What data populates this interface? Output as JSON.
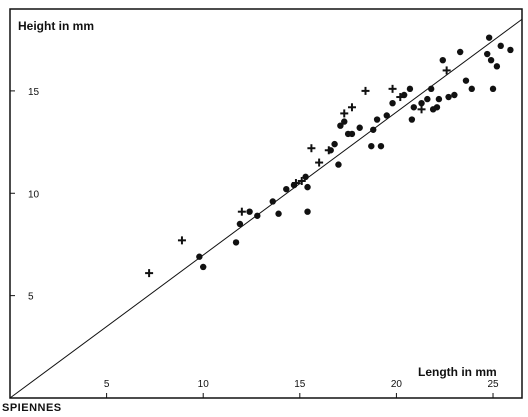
{
  "chart_data": {
    "type": "scatter",
    "title": "",
    "xlabel": "Length in mm",
    "ylabel": "Height in mm",
    "xlim": [
      0,
      26.5
    ],
    "ylim": [
      0,
      19
    ],
    "x_ticks": [
      5,
      10,
      15,
      20,
      25
    ],
    "y_ticks": [
      5,
      10,
      15
    ],
    "site_label": "SPIENNES",
    "grid": false,
    "legend": "none",
    "series": [
      {
        "marker": "dot",
        "points": [
          [
            9.8,
            6.9
          ],
          [
            10.0,
            6.4
          ],
          [
            11.7,
            7.6
          ],
          [
            11.9,
            8.5
          ],
          [
            12.4,
            9.1
          ],
          [
            12.8,
            8.9
          ],
          [
            13.6,
            9.6
          ],
          [
            13.9,
            9.0
          ],
          [
            14.3,
            10.2
          ],
          [
            14.7,
            10.4
          ],
          [
            15.3,
            10.8
          ],
          [
            15.4,
            9.1
          ],
          [
            15.4,
            10.3
          ],
          [
            16.6,
            12.1
          ],
          [
            16.8,
            12.4
          ],
          [
            17.0,
            11.4
          ],
          [
            17.1,
            13.3
          ],
          [
            17.3,
            13.5
          ],
          [
            17.5,
            12.9
          ],
          [
            17.7,
            12.9
          ],
          [
            18.1,
            13.2
          ],
          [
            18.7,
            12.3
          ],
          [
            18.8,
            13.1
          ],
          [
            19.0,
            13.6
          ],
          [
            19.2,
            12.3
          ],
          [
            19.5,
            13.8
          ],
          [
            19.8,
            14.4
          ],
          [
            20.4,
            14.8
          ],
          [
            20.7,
            15.1
          ],
          [
            20.8,
            13.6
          ],
          [
            20.9,
            14.2
          ],
          [
            21.3,
            14.4
          ],
          [
            21.6,
            14.6
          ],
          [
            21.8,
            15.1
          ],
          [
            21.9,
            14.1
          ],
          [
            22.1,
            14.2
          ],
          [
            22.2,
            14.6
          ],
          [
            22.4,
            16.5
          ],
          [
            22.7,
            14.7
          ],
          [
            23.0,
            14.8
          ],
          [
            23.3,
            16.9
          ],
          [
            23.6,
            15.5
          ],
          [
            23.9,
            15.1
          ],
          [
            24.7,
            16.8
          ],
          [
            24.8,
            17.6
          ],
          [
            24.9,
            16.5
          ],
          [
            25.2,
            16.2
          ],
          [
            25.4,
            17.2
          ],
          [
            25.9,
            17.0
          ],
          [
            25.0,
            15.1
          ]
        ]
      },
      {
        "marker": "cross",
        "points": [
          [
            7.2,
            6.1
          ],
          [
            8.9,
            7.7
          ],
          [
            12.0,
            9.1
          ],
          [
            14.8,
            10.5
          ],
          [
            15.1,
            10.6
          ],
          [
            15.6,
            12.2
          ],
          [
            16.0,
            11.5
          ],
          [
            16.5,
            12.1
          ],
          [
            17.3,
            13.9
          ],
          [
            17.7,
            14.2
          ],
          [
            18.4,
            15.0
          ],
          [
            19.8,
            15.1
          ],
          [
            20.2,
            14.7
          ],
          [
            21.3,
            14.1
          ],
          [
            22.6,
            16.0
          ]
        ]
      }
    ],
    "fit_line": {
      "x": [
        0,
        26.5
      ],
      "y": [
        0,
        18.5
      ]
    },
    "colors": {
      "ink": "#111111",
      "background": "#ffffff"
    }
  }
}
